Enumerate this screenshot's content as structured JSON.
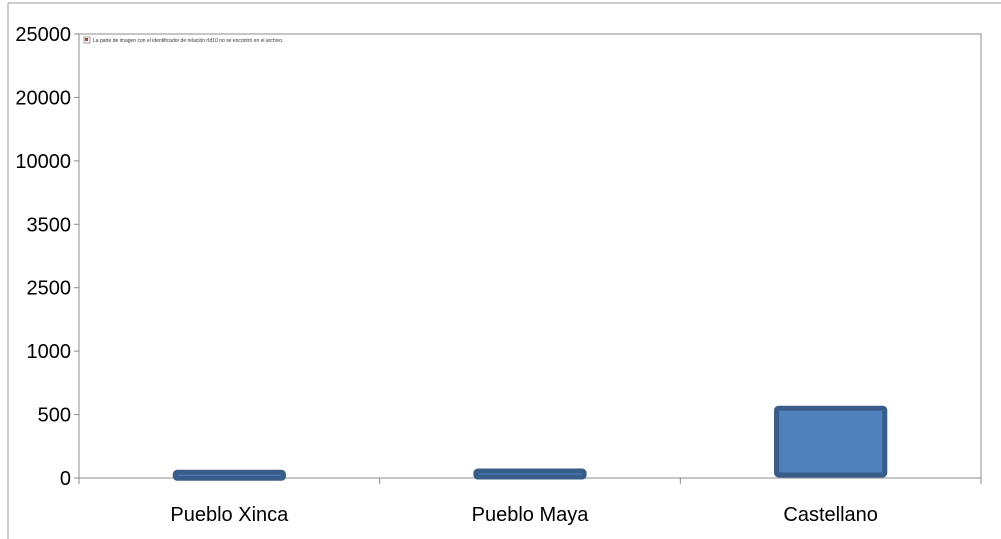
{
  "chart_data": {
    "type": "bar",
    "categories": [
      "Pueblo Xinca",
      "Pueblo Maya",
      "Castellano"
    ],
    "values": [
      45,
      55,
      550
    ],
    "y_tick_labels": [
      "0",
      "500",
      "1000",
      "2500",
      "3500",
      "10000",
      "20000",
      "25000"
    ],
    "y_scale": "categorical-ticks (non-linear labels)",
    "title": "",
    "xlabel": "",
    "ylabel": "",
    "grid": false,
    "legend": "none",
    "bar_fill": "#4F81BD",
    "bar_stroke": "#385D8A",
    "missing_image_note": "La parte de imagen con el identificador de relación rId10 no se encontró en el archivo."
  }
}
